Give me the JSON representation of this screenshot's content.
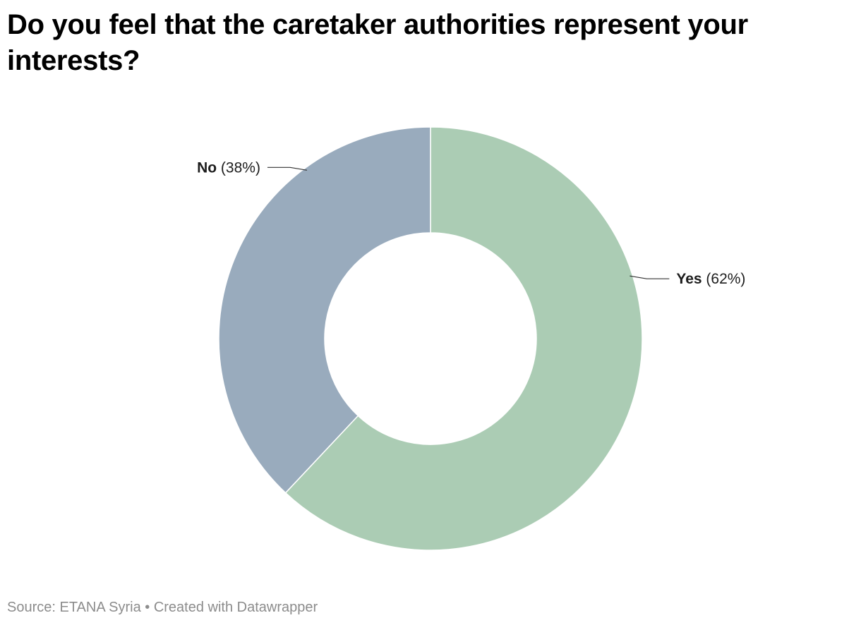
{
  "title": "Do you feel that the caretaker authorities represent your interests?",
  "footer": {
    "source": "Source: ETANA Syria",
    "separator": " • ",
    "credit": "Created with Datawrapper"
  },
  "colors": {
    "Yes": "#abccb4",
    "No": "#99abbd"
  },
  "chart_data": {
    "type": "pie",
    "donut": true,
    "title": "Do you feel that the caretaker authorities represent your interests?",
    "slices": [
      {
        "label": "Yes",
        "value": 62,
        "value_label": "(62%)"
      },
      {
        "label": "No",
        "value": 38,
        "value_label": "(38%)"
      }
    ]
  }
}
